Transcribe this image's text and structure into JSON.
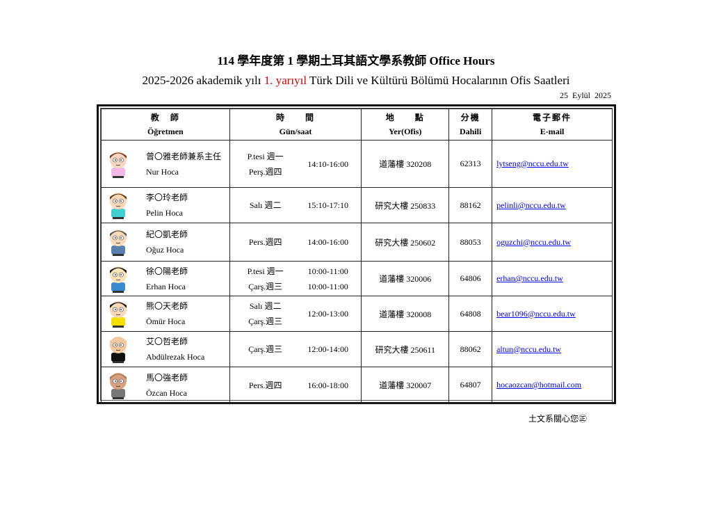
{
  "header": {
    "title": "114 學年度第 1 學期土耳其語文學系教師 Office Hours",
    "subtitle_pre": "2025-2026 akademik yılı ",
    "subtitle_red": "1. yarıyıl",
    "subtitle_post": " Türk Dili ve Kültürü Bölümü Hocalarının Ofis Saatleri",
    "date": "25 Eylül 2025",
    "accent_red": "#e00000"
  },
  "columns": [
    {
      "zh": "教　師",
      "tr": "Öğretmen"
    },
    {
      "zh": "時　　間",
      "tr": "Gün/saat"
    },
    {
      "zh": "地　　點",
      "tr": "Yer(Ofis)"
    },
    {
      "zh": "分機",
      "tr": "Dahili"
    },
    {
      "zh": "電子郵件",
      "tr": "E-mail"
    }
  ],
  "rows": [
    {
      "zh_name": "曾〇雅老師兼系主任",
      "tr_name": "Nur Hoca",
      "days": [
        "P.tesi 週一",
        "Perş.週四"
      ],
      "hours": [
        "14:10-16:00"
      ],
      "office": "道藩樓 320208",
      "ext": "62313",
      "email": "lytseng@nccu.edu.tw",
      "avatar": {
        "skin": "#f7d7c0",
        "hair": "#7a3b1e",
        "shirt": "#f2b8e8"
      },
      "height": 68
    },
    {
      "zh_name": "李〇玲老師",
      "tr_name": "Pelin Hoca",
      "days": [
        "Salı 週二"
      ],
      "hours": [
        "15:10-17:10"
      ],
      "office": "研究大樓 250833",
      "ext": "88162",
      "email": "pelinli@nccu.edu.tw",
      "avatar": {
        "skin": "#fbd9b8",
        "hair": "#6b3a12",
        "shirt": "#40d0d0"
      },
      "height": 51
    },
    {
      "zh_name": "紀〇凱老師",
      "tr_name": "Oğuz Hoca",
      "days": [
        "Pers.週四"
      ],
      "hours": [
        "14:00-16:00"
      ],
      "office": "研究大樓 250602",
      "ext": "88053",
      "email": "oguzchi@nccu.edu.tw",
      "avatar": {
        "skin": "#fbd9b8",
        "hair": "#555555",
        "shirt": "#5a80b0"
      },
      "height": 55
    },
    {
      "zh_name": "徐〇陽老師",
      "tr_name": "Erhan Hoca",
      "days": [
        "P.tesi 週一",
        "Çarş.週三"
      ],
      "hours": [
        "10:00-11:00",
        "10:00-11:00"
      ],
      "office": "道藩樓 320006",
      "ext": "64806",
      "email": "erhan@nccu.edu.tw",
      "avatar": {
        "skin": "#fbe3b8",
        "hair": "#111111",
        "shirt": "#3a8ad0"
      },
      "height": 50
    },
    {
      "zh_name": "熊〇天老師",
      "tr_name": "Ömür Hoca",
      "days": [
        "Salı 週二",
        "Çarş.週三"
      ],
      "hours": [
        "12:00-13:00"
      ],
      "office": "道藩樓 320008",
      "ext": "64808",
      "email": "bear1096@nccu.edu.tw",
      "avatar": {
        "skin": "#fbd9b8",
        "hair": "#111111",
        "shirt": "#f5e000"
      },
      "height": 51
    },
    {
      "zh_name": "艾〇哲老師",
      "tr_name": "Abdülrezak Hoca",
      "days": [
        "Çarş.週三"
      ],
      "hours": [
        "12:00-14:00"
      ],
      "office": "研究大樓 250611",
      "ext": "88062",
      "email": "altun@nccu.edu.tw",
      "avatar": {
        "skin": "#f5c8a0",
        "hair": "#f5c8a0",
        "shirt": "#111111"
      },
      "height": 51
    },
    {
      "zh_name": "馬〇強老師",
      "tr_name": "Özcan Hoca",
      "days": [
        "Pers.週四"
      ],
      "hours": [
        "16:00-18:00"
      ],
      "office": "道藩樓 320007",
      "ext": "64807",
      "email": "hocaozcan@hotmail.com",
      "avatar": {
        "skin": "#d8a080",
        "hair": "#b07850",
        "shirt": "#777777"
      },
      "height": 52
    }
  ],
  "footer": "土文系關心您㊣",
  "link_color": "#0000ee"
}
